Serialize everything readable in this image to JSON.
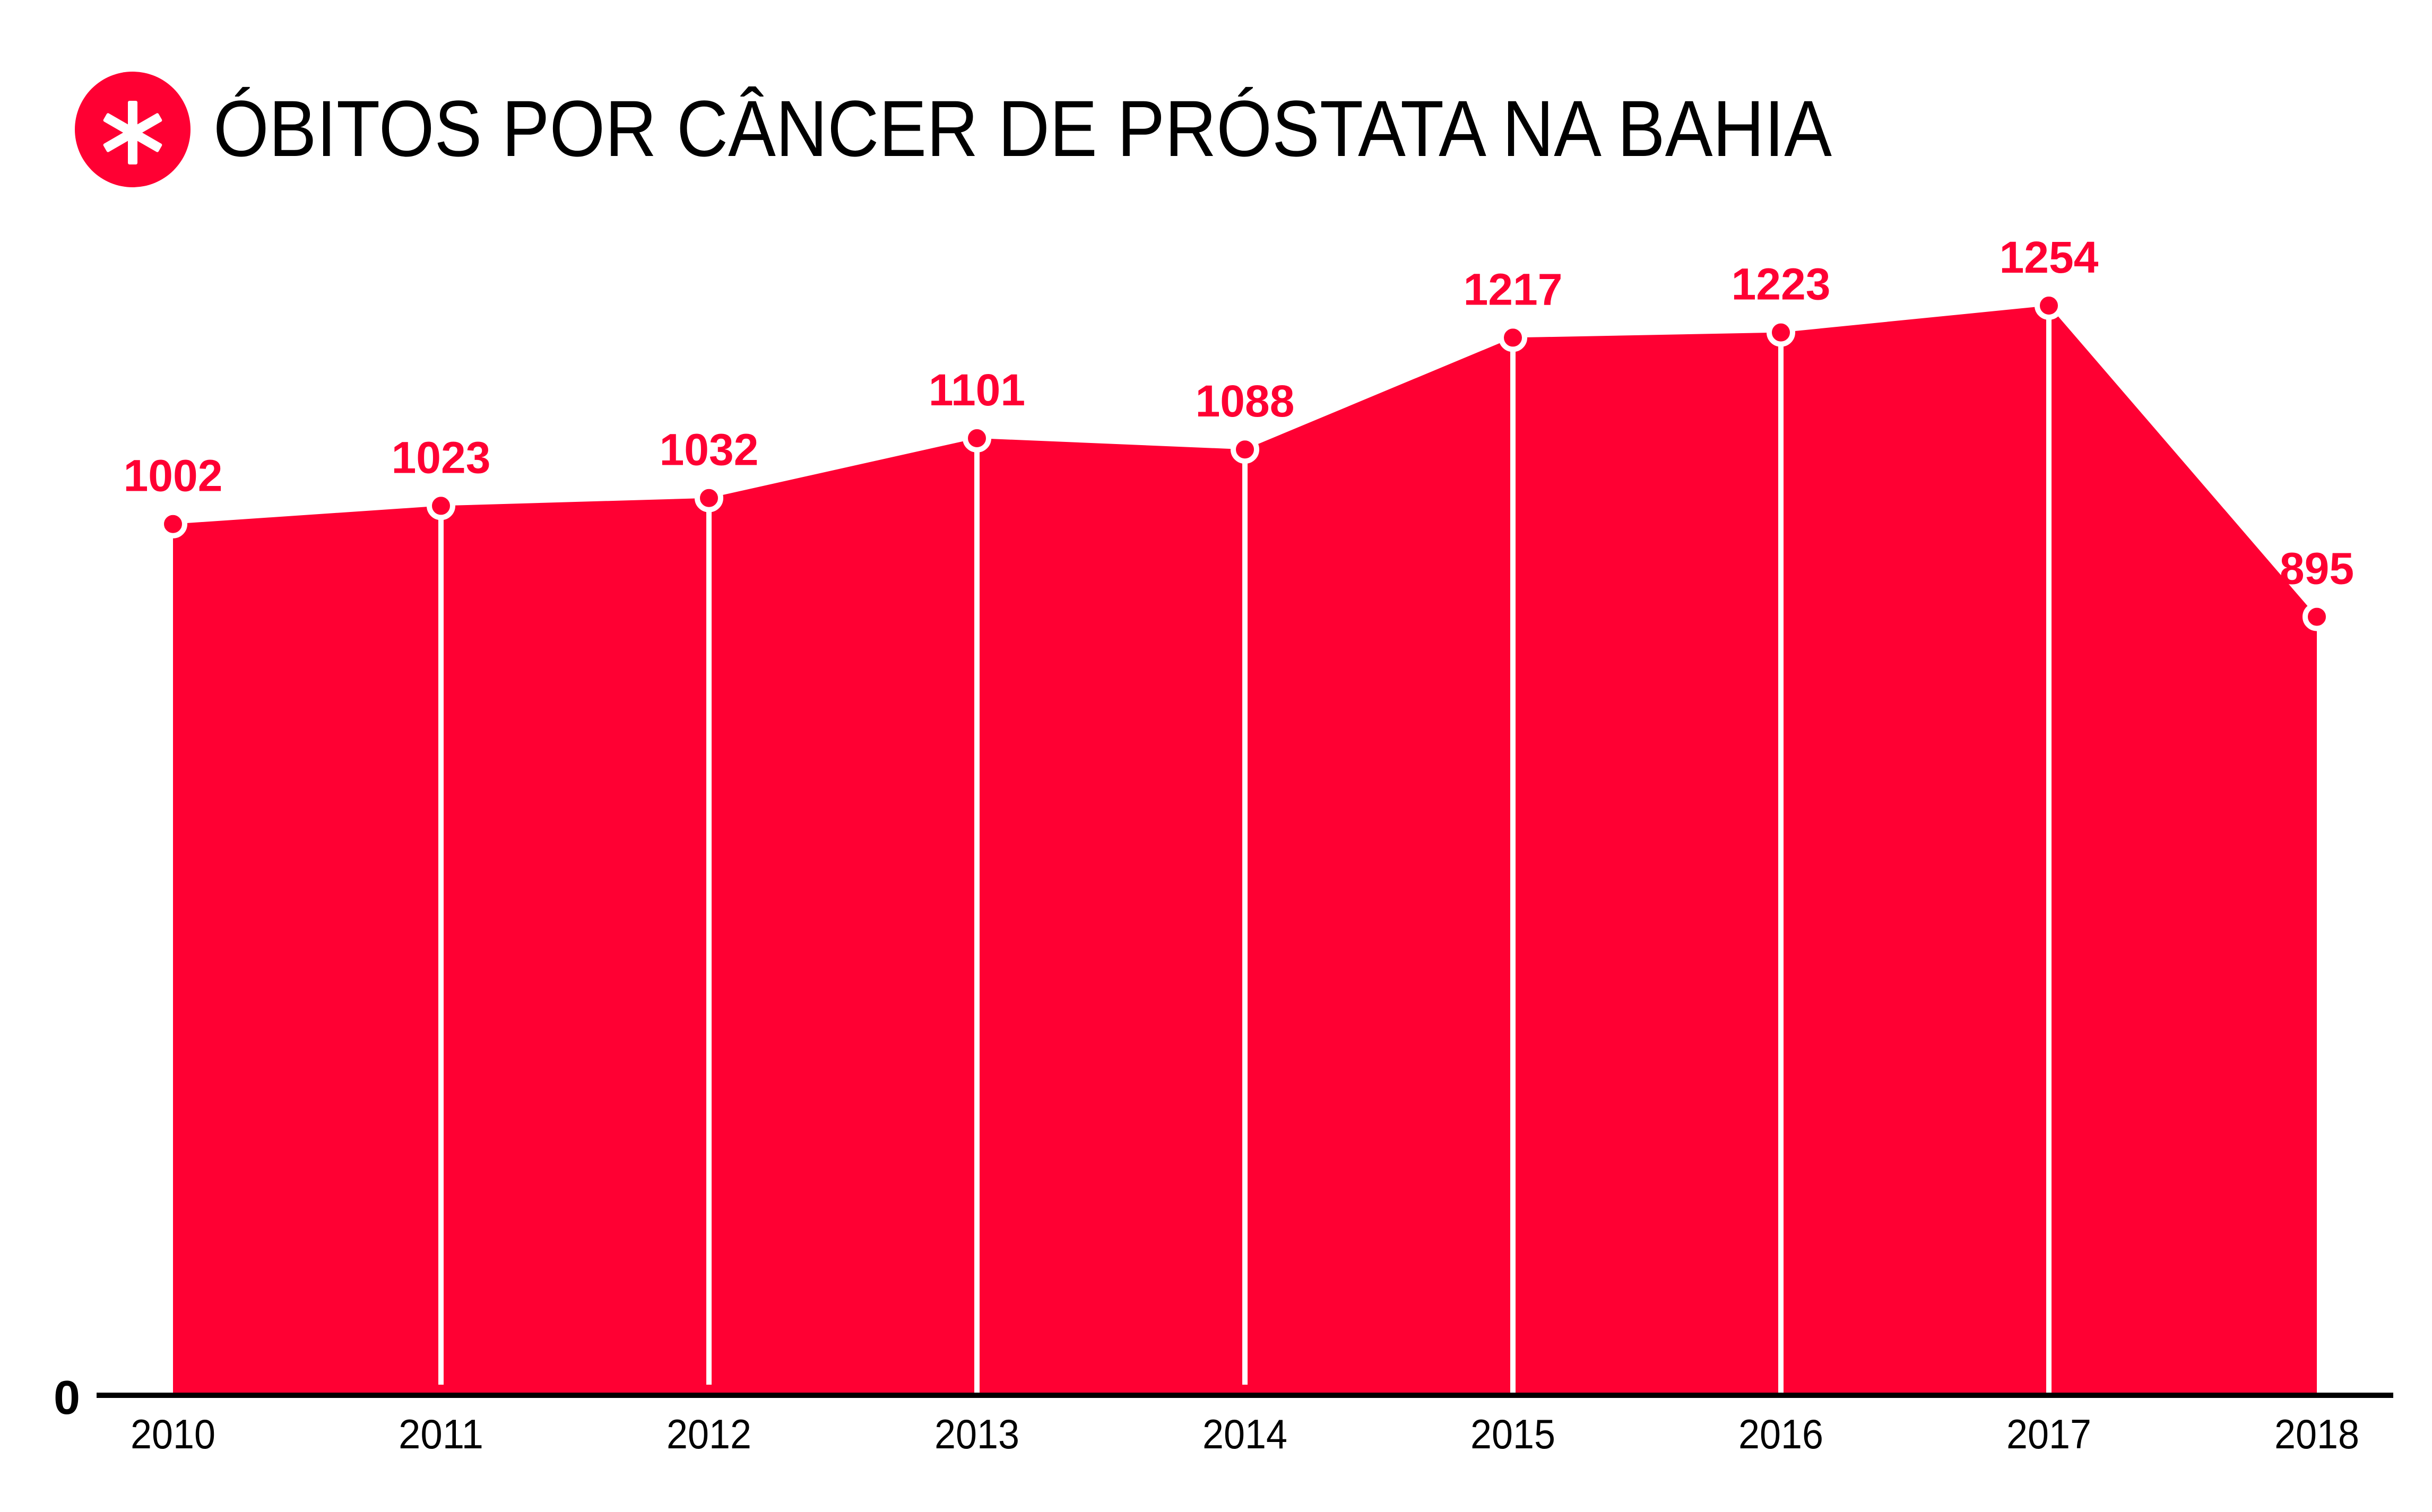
{
  "colors": {
    "accent": "#FF0033",
    "axis": "#000000",
    "marker_stroke": "#FFFFFF"
  },
  "icon": "asterisk-icon",
  "chart_data": {
    "type": "area",
    "title": "ÓBITOS POR CÂNCER DE PRÓSTATA NA BAHIA",
    "xlabel": "",
    "ylabel": "",
    "categories": [
      "2010",
      "2011",
      "2012",
      "2013",
      "2014",
      "2015",
      "2016",
      "2017",
      "2018"
    ],
    "values": [
      1002,
      1023,
      1032,
      1101,
      1088,
      1217,
      1223,
      1254,
      895
    ],
    "y_tick_labels": [
      "0"
    ],
    "ylim": [
      0,
      1400
    ],
    "grid": false,
    "legend": "none",
    "data_labels": true
  }
}
